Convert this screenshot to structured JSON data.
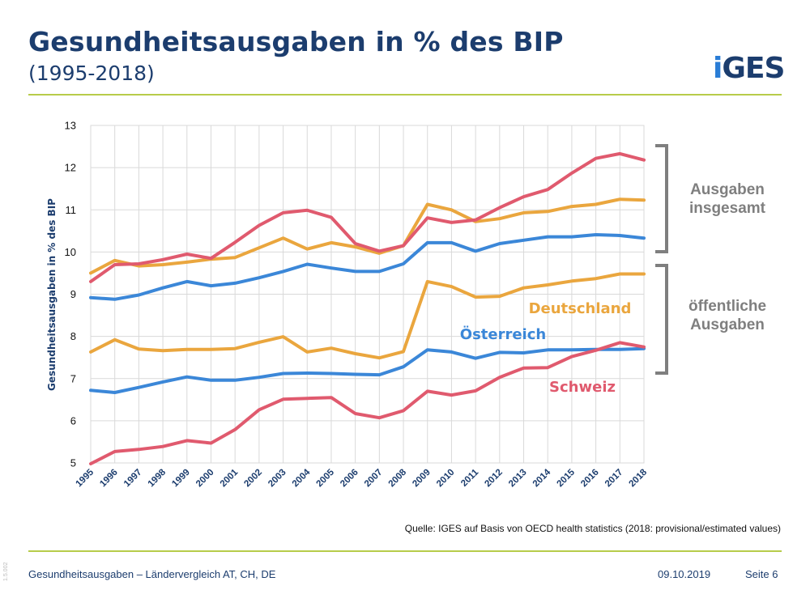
{
  "header": {
    "title": "Gesundheitsausgaben in % des BIP",
    "subtitle": "(1995-2018)",
    "logo_text": "IGES"
  },
  "source_text": "Quelle: IGES auf Basis von OECD health statistics (2018: provisional/estimated values)",
  "footer": {
    "left": "Gesundheitsausgaben – Ländervergleich AT, CH, DE",
    "date": "09.10.2019",
    "page": "Seite 6",
    "version": "1.5.002"
  },
  "colors": {
    "deutschland": "#eaa63e",
    "oesterreich": "#3b87d8",
    "schweiz": "#e05a6e",
    "grid": "#d9d9d9",
    "axis": "#1c3d6e",
    "brace": "#7f7f7f"
  },
  "chart_data": {
    "type": "line",
    "title": "",
    "xlabel": "",
    "ylabel": "Gesundheitsausgaben in % des BIP",
    "ylim": [
      5,
      13
    ],
    "yticks": [
      5,
      6,
      7,
      8,
      9,
      10,
      11,
      12,
      13
    ],
    "grid": true,
    "x": [
      "1995",
      "1996",
      "1997",
      "1998",
      "1999",
      "2000",
      "2001",
      "2002",
      "2003",
      "2004",
      "2005",
      "2006",
      "2007",
      "2008",
      "2009",
      "2010",
      "2011",
      "2012",
      "2013",
      "2014",
      "2015",
      "2016",
      "2017",
      "2018"
    ],
    "series": [
      {
        "key": "de_total",
        "country": "deutschland",
        "values": [
          9.5,
          9.8,
          9.67,
          9.7,
          9.76,
          9.83,
          9.87,
          10.1,
          10.33,
          10.07,
          10.22,
          10.12,
          9.97,
          10.15,
          11.13,
          11.0,
          10.72,
          10.79,
          10.93,
          10.96,
          11.08,
          11.13,
          11.25,
          11.23
        ]
      },
      {
        "key": "at_total",
        "country": "oesterreich",
        "values": [
          8.92,
          8.88,
          8.98,
          9.15,
          9.3,
          9.2,
          9.26,
          9.39,
          9.54,
          9.71,
          9.62,
          9.54,
          9.54,
          9.72,
          10.22,
          10.22,
          10.02,
          10.2,
          10.28,
          10.36,
          10.36,
          10.41,
          10.39,
          10.33
        ]
      },
      {
        "key": "ch_total",
        "country": "schweiz",
        "values": [
          9.3,
          9.7,
          9.72,
          9.82,
          9.95,
          9.85,
          10.23,
          10.63,
          10.93,
          10.99,
          10.82,
          10.2,
          10.02,
          10.15,
          10.81,
          10.7,
          10.76,
          11.05,
          11.31,
          11.48,
          11.87,
          12.22,
          12.33,
          12.18
        ]
      },
      {
        "key": "de_public",
        "country": "deutschland",
        "values": [
          7.63,
          7.92,
          7.7,
          7.66,
          7.69,
          7.69,
          7.71,
          7.86,
          7.99,
          7.63,
          7.72,
          7.59,
          7.49,
          7.64,
          9.3,
          9.18,
          8.93,
          8.95,
          9.15,
          9.22,
          9.31,
          9.37,
          9.48,
          9.48
        ]
      },
      {
        "key": "at_public",
        "country": "oesterreich",
        "values": [
          6.72,
          6.67,
          6.79,
          6.92,
          7.04,
          6.96,
          6.96,
          7.03,
          7.12,
          7.13,
          7.12,
          7.1,
          7.09,
          7.28,
          7.68,
          7.63,
          7.48,
          7.62,
          7.61,
          7.68,
          7.68,
          7.69,
          7.69,
          7.71
        ]
      },
      {
        "key": "ch_public",
        "country": "schweiz",
        "values": [
          4.98,
          5.27,
          5.32,
          5.39,
          5.53,
          5.47,
          5.79,
          6.26,
          6.51,
          6.53,
          6.55,
          6.17,
          6.07,
          6.24,
          6.7,
          6.61,
          6.71,
          7.03,
          7.25,
          7.26,
          7.52,
          7.67,
          7.85,
          7.75
        ]
      }
    ],
    "annotations": {
      "deutschland": "Deutschland",
      "oesterreich": "Österreich",
      "schweiz": "Schweiz",
      "brace_total": [
        "Ausgaben",
        "insgesamt"
      ],
      "brace_public": [
        "öffentliche",
        "Ausgaben"
      ]
    }
  }
}
